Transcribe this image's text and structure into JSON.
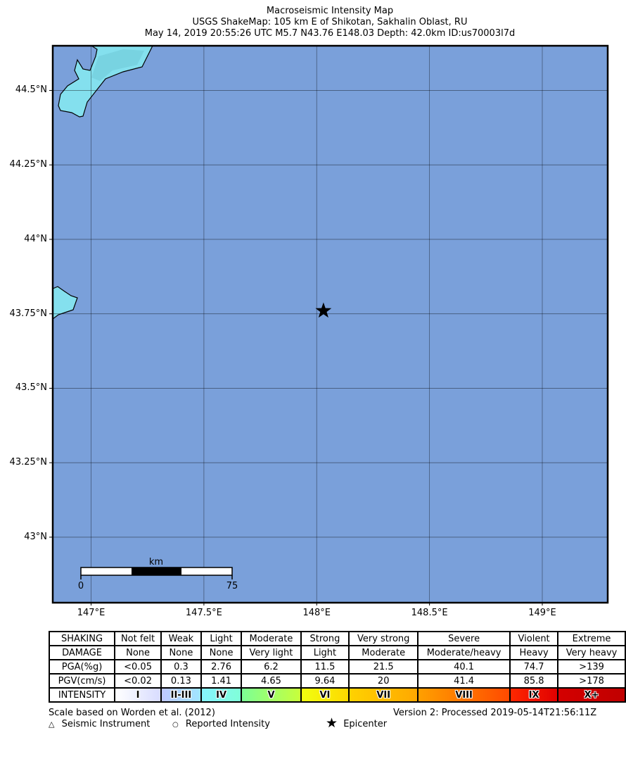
{
  "title": {
    "line1": "Macroseismic Intensity Map",
    "line2": "USGS ShakeMap: 105 km E of Shikotan, Sakhalin Oblast, RU",
    "line3": "May 14, 2019 20:55:26 UTC M5.7 N43.76 E148.03 Depth: 42.0km ID:us70003l7d"
  },
  "map": {
    "lon_range": [
      146.83,
      149.29
    ],
    "lat_range": [
      42.78,
      44.65
    ],
    "epicenter": {
      "lon": 148.03,
      "lat": 43.76
    },
    "lat_ticks": [
      {
        "value": 44.5,
        "label": "44.5°N"
      },
      {
        "value": 44.25,
        "label": "44.25°N"
      },
      {
        "value": 44.0,
        "label": "44°N"
      },
      {
        "value": 43.75,
        "label": "43.75°N"
      },
      {
        "value": 43.5,
        "label": "43.5°N"
      },
      {
        "value": 43.25,
        "label": "43.25°N"
      },
      {
        "value": 43.0,
        "label": "43°N"
      }
    ],
    "lon_ticks": [
      {
        "value": 147.0,
        "label": "147°E"
      },
      {
        "value": 147.5,
        "label": "147.5°E"
      },
      {
        "value": 148.0,
        "label": "148°E"
      },
      {
        "value": 148.5,
        "label": "148.5°E"
      },
      {
        "value": 149.0,
        "label": "149°E"
      }
    ],
    "ocean_color": "#7aa0da",
    "land_color": "#84e0ee",
    "scale_bar": {
      "unit": "km",
      "start_label": "0",
      "end_label": "75"
    }
  },
  "legend": {
    "rows": [
      {
        "label": "SHAKING",
        "cells": [
          "Not felt",
          "Weak",
          "Light",
          "Moderate",
          "Strong",
          "Very strong",
          "Severe",
          "Violent",
          "Extreme"
        ]
      },
      {
        "label": "DAMAGE",
        "cells": [
          "None",
          "None",
          "None",
          "Very light",
          "Light",
          "Moderate",
          "Moderate/heavy",
          "Heavy",
          "Very heavy"
        ]
      },
      {
        "label": "PGA(%g)",
        "cells": [
          "<0.05",
          "0.3",
          "2.76",
          "6.2",
          "11.5",
          "21.5",
          "40.1",
          "74.7",
          ">139"
        ]
      },
      {
        "label": "PGV(cm/s)",
        "cells": [
          "<0.02",
          "0.13",
          "1.41",
          "4.65",
          "9.64",
          "20",
          "41.4",
          "85.8",
          ">178"
        ]
      }
    ],
    "intensity_label": "INTENSITY",
    "intensity": [
      {
        "label": "I",
        "color_from": "#ffffff",
        "color_to": "#d8dcff"
      },
      {
        "label": "II-III",
        "color_from": "#bfc8ff",
        "color_to": "#a0e6ff"
      },
      {
        "label": "IV",
        "color_from": "#86f3ff",
        "color_to": "#80ffd8"
      },
      {
        "label": "V",
        "color_from": "#7cff96",
        "color_to": "#c8ff3a"
      },
      {
        "label": "VI",
        "color_from": "#f0ff10",
        "color_to": "#ffd800"
      },
      {
        "label": "VII",
        "color_from": "#ffd200",
        "color_to": "#ffa800"
      },
      {
        "label": "VIII",
        "color_from": "#ffa000",
        "color_to": "#ff4a00"
      },
      {
        "label": "IX",
        "color_from": "#ff2800",
        "color_to": "#e00000"
      },
      {
        "label": "X+",
        "color_from": "#d40000",
        "color_to": "#c00000"
      }
    ]
  },
  "footer": {
    "scale_note": "Scale based on Worden et al. (2012)",
    "version": "Version 2: Processed 2019-05-14T21:56:11Z",
    "seismic_instrument": "Seismic Instrument",
    "reported_intensity": "Reported Intensity",
    "epicenter": "Epicenter"
  }
}
